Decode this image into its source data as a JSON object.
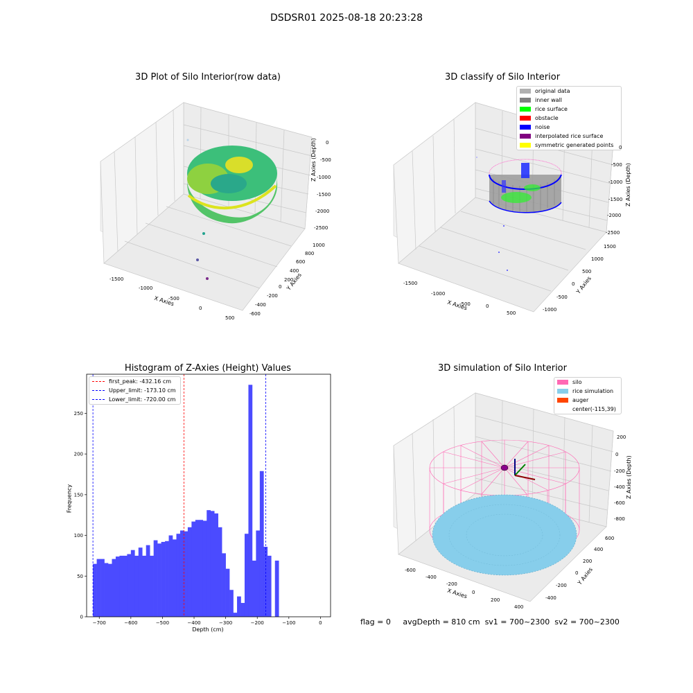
{
  "suptitle": "DSDSR01 2025-08-18 20:23:28",
  "panels": {
    "raw": {
      "title": "3D Plot of Silo Interior(row data)",
      "x_label": "X Axies",
      "y_label": "Y Axies",
      "z_label": "Z Axies (Depth)",
      "x_ticks": [
        "-1500",
        "-1000",
        "-500",
        "0",
        "500"
      ],
      "y_ticks": [
        "-600",
        "-400",
        "-200",
        "0",
        "200",
        "400",
        "600",
        "800",
        "1000"
      ],
      "z_ticks": [
        "0",
        "-500",
        "-1000",
        "-1500",
        "-2000",
        "-2500"
      ]
    },
    "classify": {
      "title": "3D classify of Silo Interior",
      "x_label": "X Axies",
      "y_label": "Y Axies",
      "z_label": "Z Axies (Depth)",
      "x_ticks": [
        "-1500",
        "-1000",
        "-500",
        "0",
        "500"
      ],
      "y_ticks": [
        "-1000",
        "-500",
        "0",
        "500",
        "1000",
        "1500"
      ],
      "z_ticks": [
        "0",
        "-500",
        "-1000",
        "-1500",
        "-2000",
        "-2500"
      ],
      "legend": [
        {
          "label": "original data",
          "color": "#b0b0b0"
        },
        {
          "label": "inner wall",
          "color": "#808080"
        },
        {
          "label": "rice surface",
          "color": "#00ff00"
        },
        {
          "label": "obstacle",
          "color": "#ff0000"
        },
        {
          "label": "noise",
          "color": "#0000ff"
        },
        {
          "label": "interpolated rice surface",
          "color": "#800080"
        },
        {
          "label": "symmetric generated points",
          "color": "#ffff00"
        }
      ]
    },
    "simulation": {
      "title": "3D simulation of Silo Interior",
      "x_label": "X Axies",
      "y_label": "Y Axies",
      "z_label": "Z Axies (Depth)",
      "x_ticks": [
        "-600",
        "-400",
        "-200",
        "0",
        "200",
        "400"
      ],
      "y_ticks": [
        "-400",
        "-200",
        "0",
        "200",
        "400",
        "600"
      ],
      "z_ticks": [
        "200",
        "0",
        "-200",
        "-400",
        "-600",
        "-800"
      ],
      "legend": [
        {
          "label": "silo",
          "color": "#ff69b4"
        },
        {
          "label": "rice simulation",
          "color": "#87ceeb"
        },
        {
          "label": "auger",
          "color": "#ff4500"
        },
        {
          "label": "center(-115,39)",
          "color": ""
        }
      ]
    }
  },
  "footer": {
    "flag": "flag = 0",
    "avg_depth": "avgDepth = 810 cm",
    "sv1": "sv1 = 700~2300",
    "sv2": "sv2 = 700~2300"
  },
  "chart_data": [
    {
      "type": "histogram",
      "title": "Histogram of Z-Axies (Height) Values",
      "xlabel": "Depth (cm)",
      "ylabel": "Frequency",
      "xlim": [
        -740,
        32
      ],
      "ylim": [
        0,
        298
      ],
      "x_ticks": [
        -700,
        -600,
        -500,
        -400,
        -300,
        -200,
        -100,
        0
      ],
      "y_ticks": [
        0,
        50,
        100,
        150,
        200,
        250
      ],
      "bar_color": "#4b4bff",
      "bins": {
        "start": -720,
        "width": 12.0,
        "counts": [
          65,
          71,
          71,
          66,
          65,
          71,
          74,
          75,
          75,
          77,
          82,
          75,
          85,
          75,
          88,
          75,
          94,
          90,
          92,
          93,
          100,
          95,
          102,
          106,
          105,
          110,
          117,
          119,
          119,
          118,
          131,
          130,
          127,
          110,
          78,
          59,
          33,
          5,
          25,
          17,
          102,
          285,
          69,
          106,
          179,
          86,
          75,
          0,
          69
        ]
      },
      "lines": [
        {
          "label": "first_peak: -432.16 cm",
          "x": -432.16,
          "color": "#ff0000"
        },
        {
          "label": "Upper_limit: -173.10 cm",
          "x": -173.1,
          "color": "#0000ff"
        },
        {
          "label": "Lower_limit: -720.00 cm",
          "x": -720.0,
          "color": "#0000ff"
        }
      ]
    }
  ]
}
